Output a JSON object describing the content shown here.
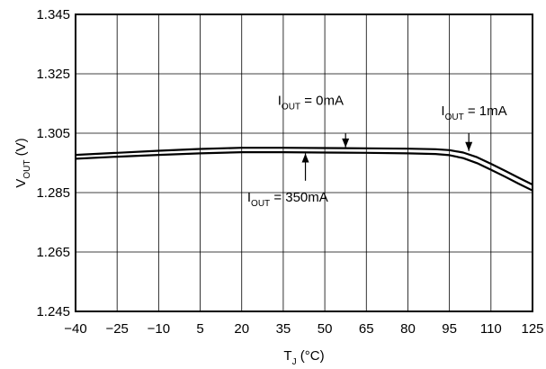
{
  "chart_data": {
    "type": "line",
    "title": "",
    "xlabel": {
      "main": "T",
      "sub": "J",
      "unit": " (°C)"
    },
    "ylabel": {
      "main": "V",
      "sub": "OUT",
      "unit": " (V)"
    },
    "xlim": [
      -40,
      125
    ],
    "ylim": [
      1.245,
      1.345
    ],
    "xticks": [
      -40,
      -25,
      -10,
      5,
      20,
      35,
      50,
      65,
      80,
      95,
      110,
      125
    ],
    "xtick_labels": [
      "−40",
      "−25",
      "−10",
      "5",
      "20",
      "35",
      "50",
      "65",
      "80",
      "95",
      "110",
      "125"
    ],
    "yticks": [
      1.245,
      1.265,
      1.285,
      1.305,
      1.325,
      1.345
    ],
    "ytick_labels": [
      "1.245",
      "1.265",
      "1.285",
      "1.305",
      "1.325",
      "1.345"
    ],
    "grid": true,
    "legend": "none",
    "colors": {
      "line": "#000000",
      "grid": "#000000",
      "background": "#ffffff"
    },
    "series": [
      {
        "x": [
          -40,
          -25,
          -10,
          5,
          20,
          35,
          50,
          65,
          80,
          90,
          95,
          100,
          105,
          110,
          115,
          120,
          125
        ],
        "y": [
          1.2977,
          1.2984,
          1.2991,
          1.2997,
          1.3001,
          1.3001,
          1.3,
          1.2999,
          1.2998,
          1.2996,
          1.2993,
          1.2985,
          1.2969,
          1.2947,
          1.2924,
          1.29,
          1.2877
        ]
      },
      {
        "x": [
          -40,
          -25,
          -10,
          5,
          20,
          35,
          50,
          65,
          80,
          90,
          95,
          100,
          105,
          110,
          115,
          120,
          125
        ],
        "y": [
          1.2964,
          1.2971,
          1.2977,
          1.2982,
          1.2986,
          1.2986,
          1.2985,
          1.2984,
          1.2982,
          1.298,
          1.2976,
          1.2966,
          1.2949,
          1.2927,
          1.2904,
          1.288,
          1.2857
        ]
      }
    ],
    "annotations": [
      {
        "label": "I",
        "sub": "OUT",
        "value": " = 0mA",
        "text_x": 33,
        "text_y": 1.3145,
        "arrow_from": [
          57.5,
          1.305
        ],
        "arrow_to": [
          57.5,
          1.3002
        ]
      },
      {
        "label": "I",
        "sub": "OUT",
        "value": " = 1mA",
        "text_x": 92,
        "text_y": 1.311,
        "arrow_from": [
          102,
          1.305
        ],
        "arrow_to": [
          102,
          1.299
        ]
      },
      {
        "label": "I",
        "sub": "OUT",
        "value": " = 350mA",
        "text_x": 22,
        "text_y": 1.282,
        "arrow_from": [
          43,
          1.289
        ],
        "arrow_to": [
          43,
          1.2982
        ]
      }
    ]
  }
}
